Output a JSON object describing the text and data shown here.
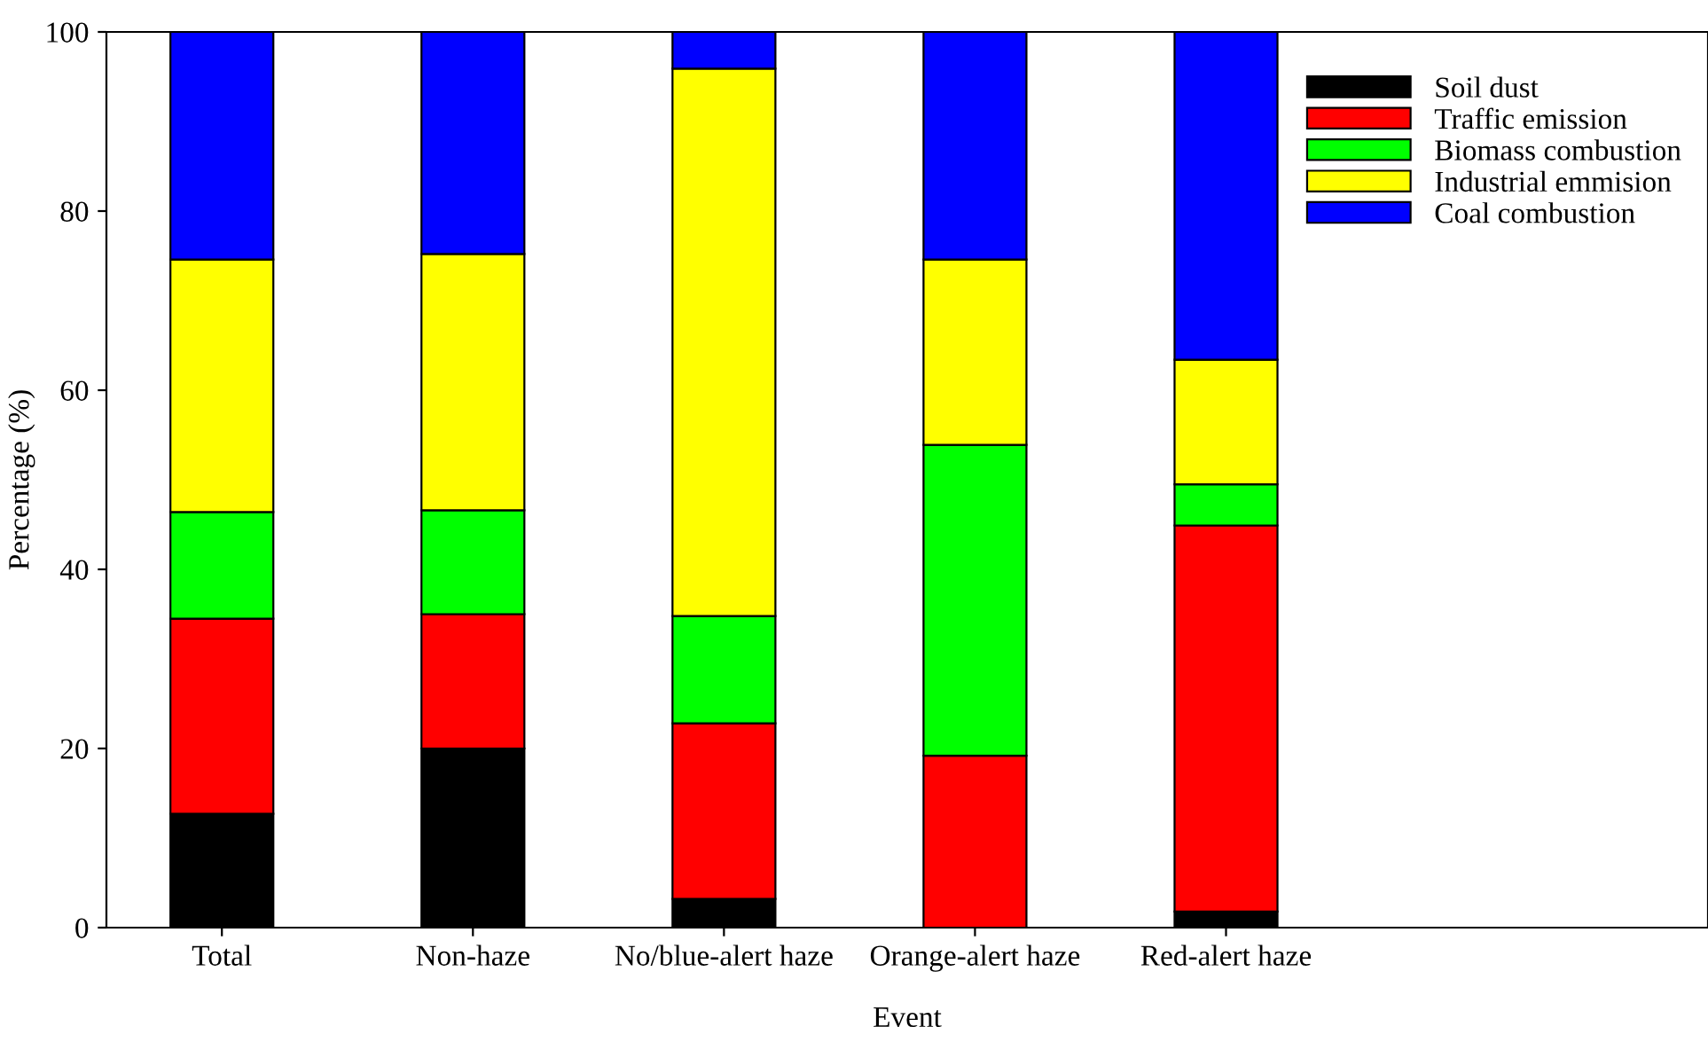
{
  "chart_data": {
    "type": "bar",
    "stacked": true,
    "xlabel": "Event",
    "ylabel": "Percentage (%)",
    "categories": [
      "Total",
      "Non-haze",
      "No/blue-alert haze",
      "Orange-alert haze",
      "Red-alert haze"
    ],
    "series": [
      {
        "name": "Soil dust",
        "color": "#000000",
        "values": [
          12.7,
          20.0,
          3.2,
          0,
          1.8
        ]
      },
      {
        "name": "Traffic emission",
        "color": "#ff0000",
        "values": [
          21.8,
          15.0,
          19.6,
          19.2,
          43.1
        ]
      },
      {
        "name": "Biomass combustion",
        "color": "#00ff00",
        "values": [
          11.9,
          11.6,
          12.0,
          34.7,
          4.6
        ]
      },
      {
        "name": "Industrial emmision",
        "color": "#ffff00",
        "values": [
          28.2,
          28.6,
          61.1,
          20.7,
          13.9
        ]
      },
      {
        "name": "Coal combustion",
        "color": "#0000ff",
        "values": [
          25.4,
          24.8,
          4.1,
          25.4,
          36.6
        ]
      }
    ],
    "ylim": [
      0,
      100
    ],
    "yticks": [
      0,
      20,
      40,
      60,
      80,
      100
    ],
    "grid": false,
    "legend": "top right"
  }
}
